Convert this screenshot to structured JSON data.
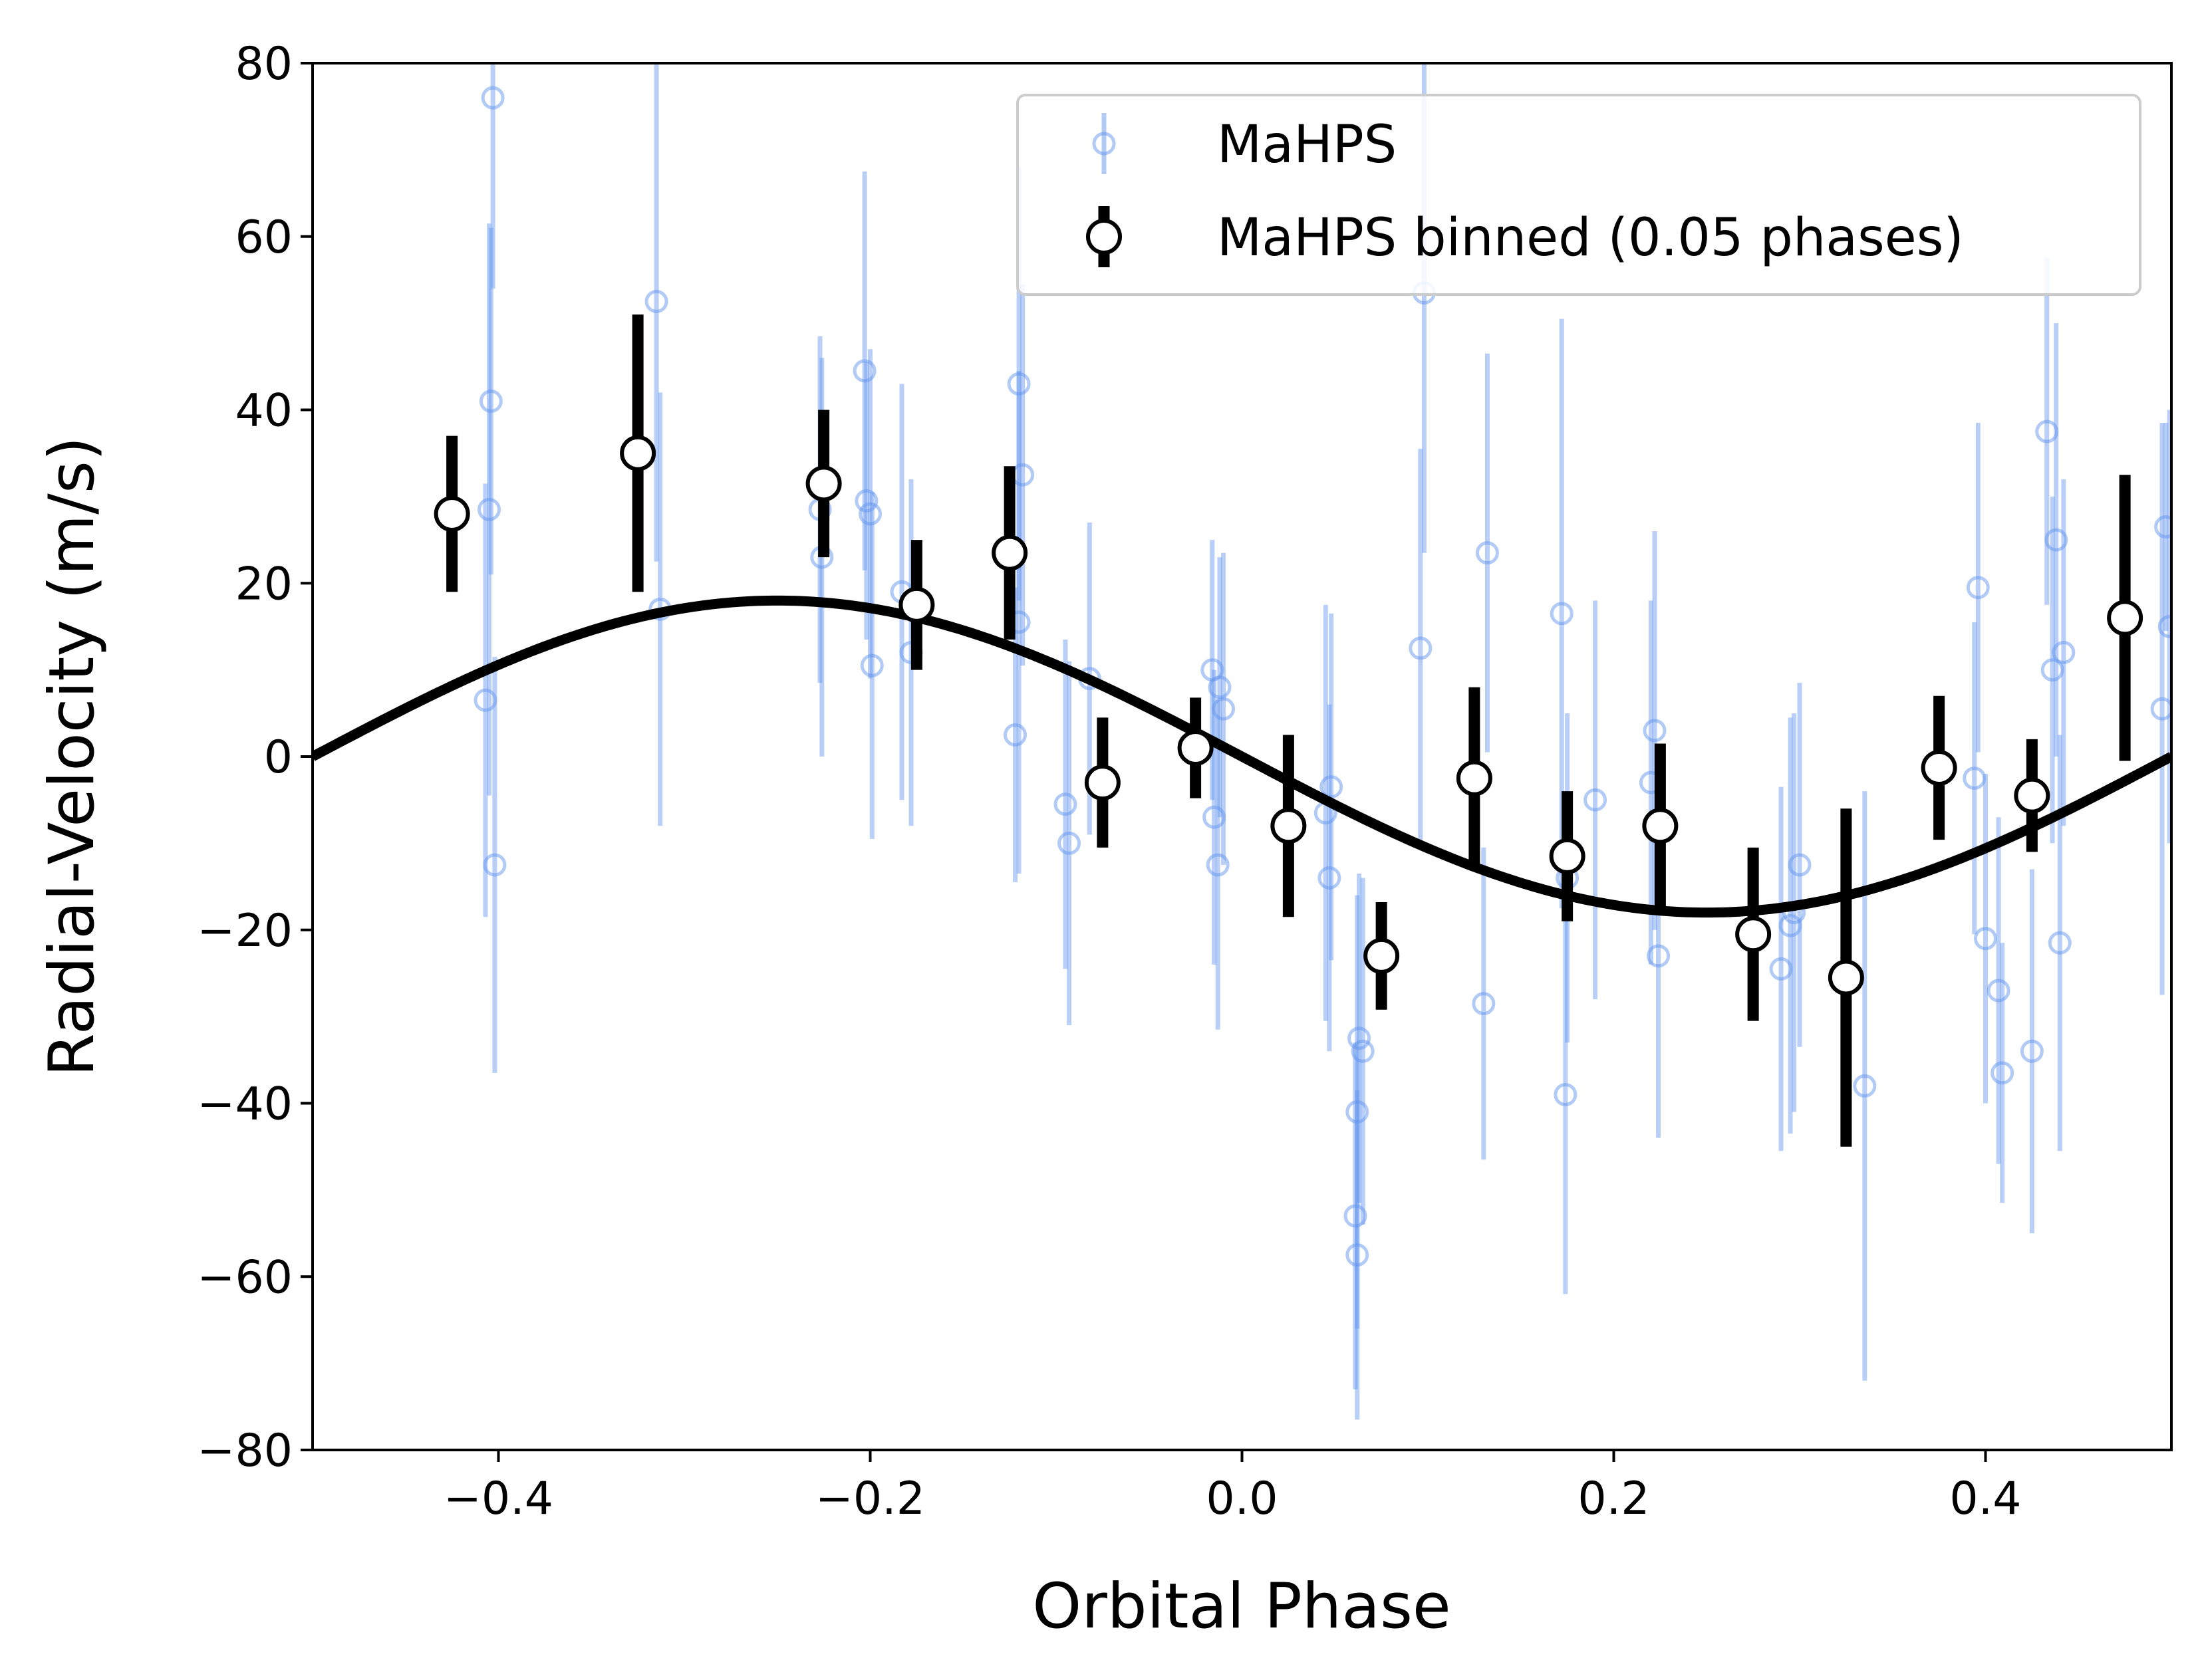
{
  "chart_data": {
    "type": "scatter",
    "xlabel": "Orbital Phase",
    "ylabel": "Radial-Velocity (m/s)",
    "xlim": [
      -0.5,
      0.5
    ],
    "ylim": [
      -80,
      80
    ],
    "xticks": [
      -0.4,
      -0.2,
      0.0,
      0.2,
      0.4
    ],
    "xtick_labels": [
      "−0.4",
      "−0.2",
      "0.0",
      "0.2",
      "0.4"
    ],
    "yticks": [
      -80,
      -60,
      -40,
      -20,
      0,
      20,
      40,
      60,
      80
    ],
    "ytick_labels": [
      "−80",
      "−60",
      "−40",
      "−20",
      "0",
      "20",
      "40",
      "60",
      "80"
    ],
    "grid": false,
    "legend_position": "top-right",
    "colors": {
      "raw": "#6495ED",
      "binned": "#000000",
      "model": "#000000"
    },
    "model": {
      "name": "",
      "function": "sine",
      "amplitude": 18,
      "phase_offset": 0,
      "note": ""
    },
    "series": [
      {
        "name": "MaHPS",
        "style": "open-circle-errorbar",
        "points": [
          {
            "x": -0.403,
            "y": 76,
            "err": 22
          },
          {
            "x": -0.404,
            "y": 41,
            "err": 20
          },
          {
            "x": -0.405,
            "y": 28.5,
            "err": 33
          },
          {
            "x": -0.407,
            "y": 6.5,
            "err": 25
          },
          {
            "x": -0.402,
            "y": -12.5,
            "err": 24
          },
          {
            "x": -0.315,
            "y": 52.5,
            "err": 30
          },
          {
            "x": -0.313,
            "y": 17,
            "err": 25
          },
          {
            "x": -0.227,
            "y": 28.5,
            "err": 20
          },
          {
            "x": -0.226,
            "y": 23,
            "err": 23
          },
          {
            "x": -0.203,
            "y": 44.5,
            "err": 23
          },
          {
            "x": -0.202,
            "y": 29.5,
            "err": 16
          },
          {
            "x": -0.2,
            "y": 28,
            "err": 19
          },
          {
            "x": -0.199,
            "y": 10.5,
            "err": 20
          },
          {
            "x": -0.183,
            "y": 19,
            "err": 24
          },
          {
            "x": -0.178,
            "y": 12,
            "err": 20
          },
          {
            "x": -0.12,
            "y": 43,
            "err": 25
          },
          {
            "x": -0.118,
            "y": 32.5,
            "err": 22
          },
          {
            "x": -0.12,
            "y": 15.5,
            "err": 29
          },
          {
            "x": -0.122,
            "y": 2.5,
            "err": 17
          },
          {
            "x": -0.095,
            "y": -5.5,
            "err": 19
          },
          {
            "x": -0.093,
            "y": -10,
            "err": 21
          },
          {
            "x": -0.082,
            "y": 9,
            "err": 18
          },
          {
            "x": -0.016,
            "y": 10,
            "err": 15
          },
          {
            "x": -0.012,
            "y": 8,
            "err": 15
          },
          {
            "x": -0.01,
            "y": 5.5,
            "err": 18
          },
          {
            "x": -0.015,
            "y": -7,
            "err": 17
          },
          {
            "x": -0.013,
            "y": -12.5,
            "err": 19
          },
          {
            "x": 0.048,
            "y": -3.5,
            "err": 20
          },
          {
            "x": 0.045,
            "y": -6.5,
            "err": 24
          },
          {
            "x": 0.047,
            "y": -14,
            "err": 20
          },
          {
            "x": 0.063,
            "y": -32.5,
            "err": 19
          },
          {
            "x": 0.065,
            "y": -34,
            "err": 20
          },
          {
            "x": 0.062,
            "y": -41,
            "err": 25
          },
          {
            "x": 0.061,
            "y": -53,
            "err": 20
          },
          {
            "x": 0.062,
            "y": -57.5,
            "err": 19
          },
          {
            "x": 0.098,
            "y": 53.5,
            "err": 30
          },
          {
            "x": 0.096,
            "y": 12.5,
            "err": 23
          },
          {
            "x": 0.132,
            "y": 23.5,
            "err": 23
          },
          {
            "x": 0.13,
            "y": -28.5,
            "err": 18
          },
          {
            "x": 0.172,
            "y": 16.5,
            "err": 34
          },
          {
            "x": 0.175,
            "y": -14,
            "err": 19
          },
          {
            "x": 0.174,
            "y": -39,
            "err": 23
          },
          {
            "x": 0.19,
            "y": -5,
            "err": 23
          },
          {
            "x": 0.222,
            "y": 3,
            "err": 23
          },
          {
            "x": 0.22,
            "y": -3,
            "err": 21
          },
          {
            "x": 0.224,
            "y": -23,
            "err": 21
          },
          {
            "x": 0.29,
            "y": -24.5,
            "err": 21
          },
          {
            "x": 0.295,
            "y": -19.5,
            "err": 24
          },
          {
            "x": 0.297,
            "y": -18,
            "err": 23
          },
          {
            "x": 0.3,
            "y": -12.5,
            "err": 21
          },
          {
            "x": 0.335,
            "y": -38,
            "err": 34
          },
          {
            "x": 0.396,
            "y": 19.5,
            "err": 19
          },
          {
            "x": 0.394,
            "y": -2.5,
            "err": 18
          },
          {
            "x": 0.4,
            "y": -21,
            "err": 19
          },
          {
            "x": 0.407,
            "y": -27,
            "err": 20
          },
          {
            "x": 0.409,
            "y": -36.5,
            "err": 15
          },
          {
            "x": 0.425,
            "y": -34,
            "err": 21
          },
          {
            "x": 0.433,
            "y": 37.5,
            "err": 20
          },
          {
            "x": 0.436,
            "y": 10,
            "err": 20
          },
          {
            "x": 0.438,
            "y": 25,
            "err": 25
          },
          {
            "x": 0.442,
            "y": 12,
            "err": 20
          },
          {
            "x": 0.44,
            "y": -21.5,
            "err": 24
          },
          {
            "x": 0.497,
            "y": 26.5,
            "err": 12
          },
          {
            "x": 0.499,
            "y": 15,
            "err": 25
          },
          {
            "x": 0.495,
            "y": 5.5,
            "err": 33
          }
        ]
      },
      {
        "name": "MaHPS binned (0.05 phases)",
        "style": "filled-white-circle-errorbar",
        "points": [
          {
            "x": -0.425,
            "y": 28,
            "err": 9
          },
          {
            "x": -0.325,
            "y": 35,
            "err": 16
          },
          {
            "x": -0.225,
            "y": 31.5,
            "err": 8.5
          },
          {
            "x": -0.175,
            "y": 17.5,
            "err": 7.5
          },
          {
            "x": -0.125,
            "y": 23.5,
            "err": 10
          },
          {
            "x": -0.075,
            "y": -3,
            "err": 7.5
          },
          {
            "x": -0.025,
            "y": 1,
            "err": 5.8
          },
          {
            "x": 0.025,
            "y": -8,
            "err": 10.5
          },
          {
            "x": 0.075,
            "y": -23,
            "err": 6.2
          },
          {
            "x": 0.125,
            "y": -2.5,
            "err": 10.5
          },
          {
            "x": 0.175,
            "y": -11.5,
            "err": 7.5
          },
          {
            "x": 0.225,
            "y": -8,
            "err": 9.5
          },
          {
            "x": 0.275,
            "y": -20.5,
            "err": 10
          },
          {
            "x": 0.325,
            "y": -25.5,
            "err": 19.5
          },
          {
            "x": 0.375,
            "y": -1.3,
            "err": 8.3
          },
          {
            "x": 0.425,
            "y": -4.5,
            "err": 6.5
          },
          {
            "x": 0.475,
            "y": 16,
            "err": 16.5
          }
        ]
      }
    ],
    "legend": [
      {
        "label": "MaHPS",
        "marker": "open-blue-circle"
      },
      {
        "label": "MaHPS binned (0.05 phases)",
        "marker": "white-circle-black-edge"
      }
    ]
  }
}
